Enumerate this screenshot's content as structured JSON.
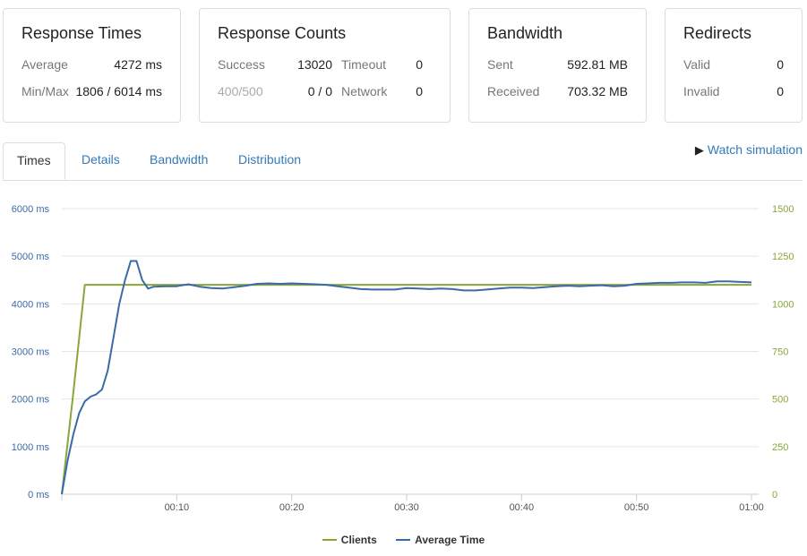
{
  "cards": {
    "response_times": {
      "title": "Response Times",
      "average_label": "Average",
      "average_value": "4272 ms",
      "minmax_label": "Min/Max",
      "minmax_value": "1806 / 6014 ms"
    },
    "response_counts": {
      "title": "Response Counts",
      "success_label": "Success",
      "success_value": "13020",
      "timeout_label": "Timeout",
      "timeout_value": "0",
      "errors_label": "400/500",
      "errors_value": "0 / 0",
      "network_label": "Network",
      "network_value": "0"
    },
    "bandwidth": {
      "title": "Bandwidth",
      "sent_label": "Sent",
      "sent_value": "592.81 MB",
      "received_label": "Received",
      "received_value": "703.32 MB"
    },
    "redirects": {
      "title": "Redirects",
      "valid_label": "Valid",
      "valid_value": "0",
      "invalid_label": "Invalid",
      "invalid_value": "0"
    }
  },
  "tabs": [
    "Times",
    "Details",
    "Bandwidth",
    "Distribution"
  ],
  "active_tab": "Times",
  "watch_simulation": "Watch simulation",
  "colors": {
    "clients": "#8aa63b",
    "average_time": "#3a6aa8",
    "link": "#337ab7"
  },
  "chart_data": {
    "type": "line",
    "x_unit": "seconds",
    "x_ticks": [
      10,
      20,
      30,
      40,
      50,
      60
    ],
    "x_tick_labels": [
      "00:10",
      "00:20",
      "00:30",
      "00:40",
      "00:50",
      "01:00"
    ],
    "xlim": [
      0,
      60
    ],
    "y_left": {
      "ylim": [
        0,
        6000
      ],
      "ticks": [
        0,
        1000,
        2000,
        3000,
        4000,
        5000,
        6000
      ],
      "tick_labels": [
        "0 ms",
        "1000 ms",
        "2000 ms",
        "3000 ms",
        "4000 ms",
        "5000 ms",
        "6000 ms"
      ]
    },
    "y_right": {
      "ylim": [
        0,
        1500
      ],
      "ticks": [
        0,
        250,
        500,
        750,
        1000,
        1250,
        1500
      ],
      "tick_labels": [
        "0",
        "250",
        "500",
        "750",
        "1000",
        "1250",
        "1500"
      ]
    },
    "grid": true,
    "legend_position": "bottom",
    "series": [
      {
        "name": "Clients",
        "axis": "right",
        "color": "#8aa63b",
        "x": [
          0,
          1,
          2,
          60
        ],
        "y": [
          0,
          530,
          1100,
          1100
        ]
      },
      {
        "name": "Average Time",
        "axis": "left",
        "color": "#3a6aa8",
        "x": [
          0,
          0.5,
          1,
          1.5,
          2,
          2.5,
          3,
          3.5,
          4,
          4.5,
          5,
          5.5,
          6,
          6.5,
          7,
          7.5,
          8,
          9,
          10,
          11,
          12,
          13,
          14,
          15,
          16,
          17,
          18,
          19,
          20,
          21,
          22,
          23,
          24,
          25,
          26,
          27,
          28,
          29,
          30,
          31,
          32,
          33,
          34,
          35,
          36,
          37,
          38,
          39,
          40,
          41,
          42,
          43,
          44,
          45,
          46,
          47,
          48,
          49,
          50,
          51,
          52,
          53,
          54,
          55,
          56,
          57,
          58,
          59,
          60
        ],
        "y": [
          0,
          700,
          1250,
          1700,
          1950,
          2050,
          2100,
          2200,
          2600,
          3300,
          4000,
          4500,
          4900,
          4900,
          4500,
          4320,
          4360,
          4370,
          4370,
          4410,
          4360,
          4330,
          4320,
          4350,
          4380,
          4420,
          4430,
          4420,
          4430,
          4420,
          4410,
          4400,
          4370,
          4340,
          4310,
          4300,
          4300,
          4300,
          4330,
          4320,
          4310,
          4320,
          4310,
          4280,
          4280,
          4300,
          4320,
          4340,
          4340,
          4330,
          4350,
          4370,
          4380,
          4370,
          4380,
          4390,
          4370,
          4380,
          4420,
          4430,
          4440,
          4440,
          4450,
          4450,
          4440,
          4470,
          4470,
          4460,
          4450
        ]
      }
    ]
  }
}
